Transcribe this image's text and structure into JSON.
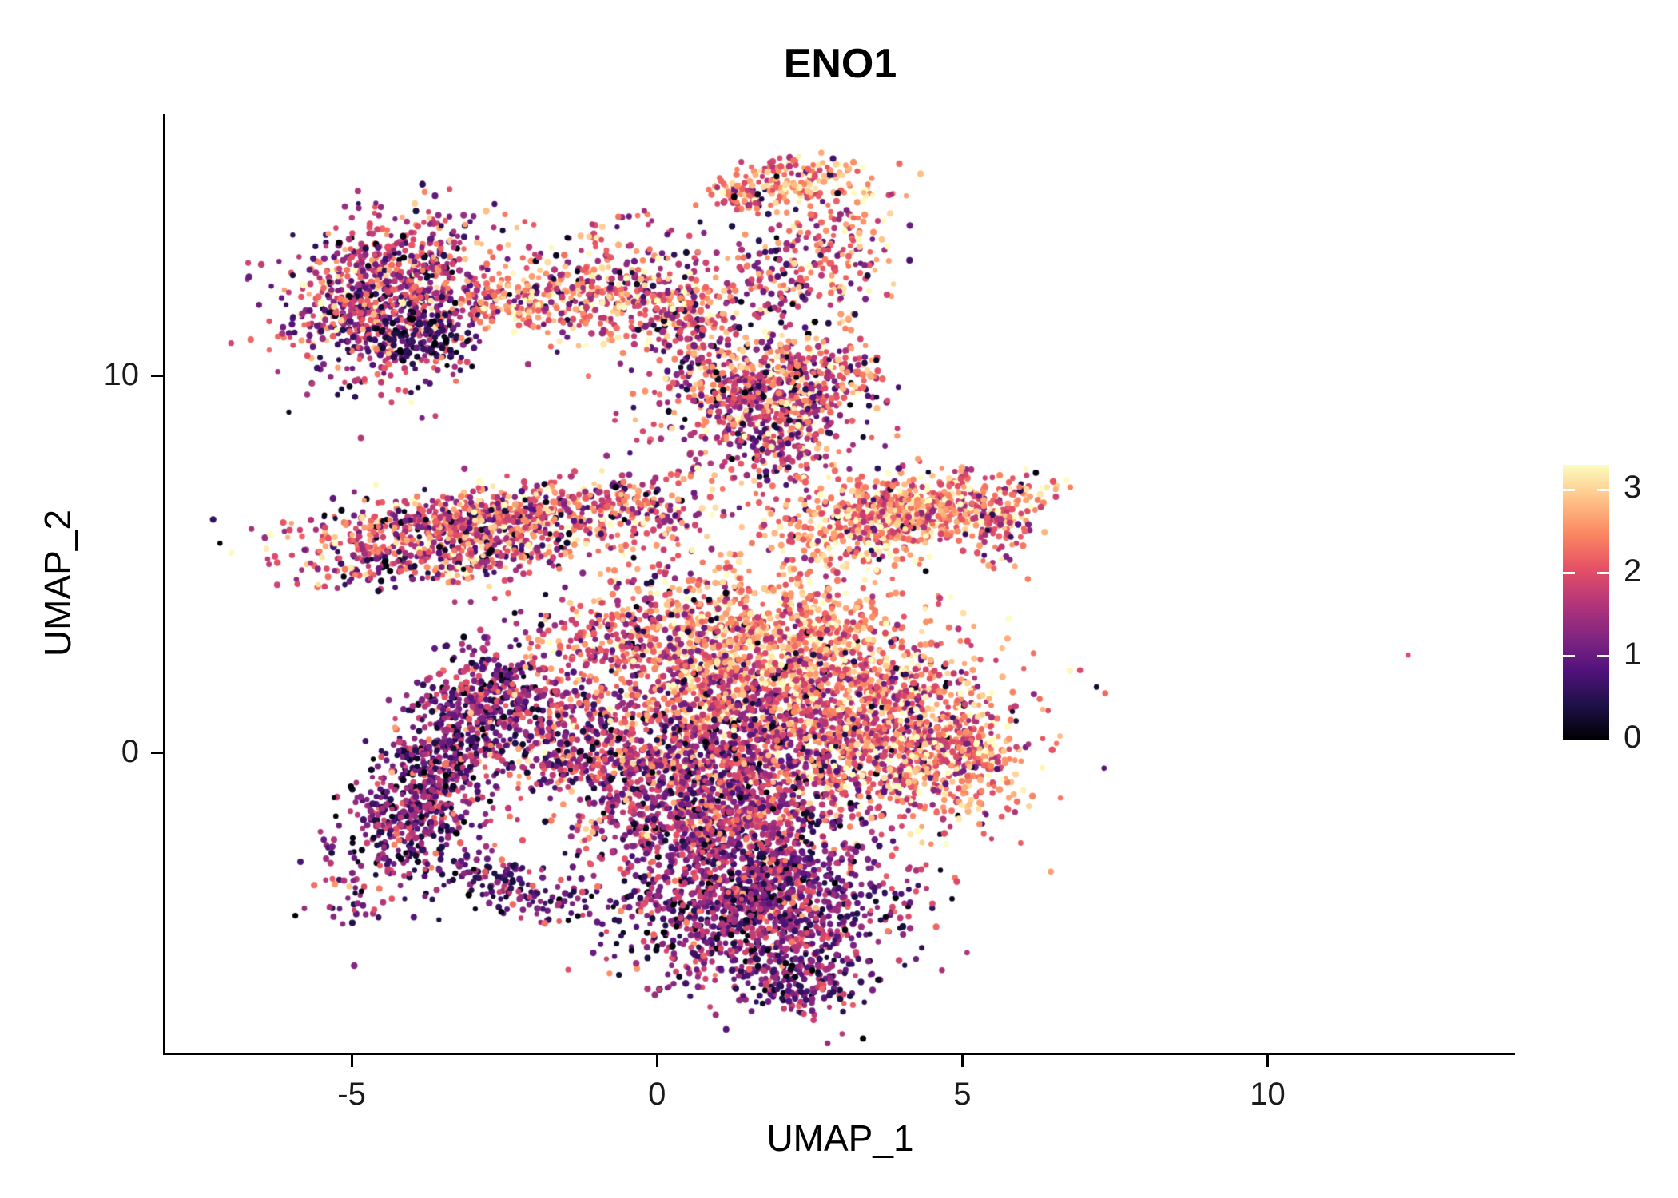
{
  "title": "ENO1",
  "chart_data": {
    "type": "scatter",
    "title": "ENO1",
    "subtitle": "",
    "xlabel": "UMAP_1",
    "ylabel": "UMAP_2",
    "xlim": [
      -8.05,
      14.05
    ],
    "ylim": [
      -7.95,
      16.95
    ],
    "grid": false,
    "x_ticks": [
      {
        "value": -5,
        "label": "-5"
      },
      {
        "value": 0,
        "label": "0"
      },
      {
        "value": 5,
        "label": "5"
      },
      {
        "value": 10,
        "label": "10"
      }
    ],
    "y_ticks": [
      {
        "value": 10,
        "label": "10"
      },
      {
        "value": 0,
        "label": "0"
      }
    ],
    "legend": {
      "position": "right",
      "range": [
        0,
        3.3
      ],
      "breaks": [
        {
          "value": 3,
          "label": "3"
        },
        {
          "value": 2,
          "label": "2"
        },
        {
          "value": 1,
          "label": "1"
        },
        {
          "value": 0,
          "label": "0"
        }
      ],
      "colormap": "magma",
      "stops": [
        "#000004",
        "#1d1147",
        "#51127c",
        "#822681",
        "#b63679",
        "#e65164",
        "#fb8861",
        "#fec287",
        "#fcfdbf"
      ]
    },
    "point_radius_px": [
      3.1,
      4.3
    ],
    "seed": 42,
    "clusters": [
      {
        "name": "top-left-main",
        "cx": -4.35,
        "cy": 12.1,
        "sx": 0.8,
        "sy": 1.05,
        "angle": -20,
        "n": 950,
        "expr_mean": 1.7,
        "expr_sd": 0.75,
        "low_frac": 0.07
      },
      {
        "name": "top-left-dark-patch",
        "cx": -3.85,
        "cy": 10.95,
        "sx": 0.38,
        "sy": 0.3,
        "angle": 0,
        "n": 100,
        "expr_mean": 0.5,
        "expr_sd": 0.35,
        "low_frac": 0.35
      },
      {
        "name": "top-left-bridge",
        "cx": -2.05,
        "cy": 12.0,
        "sx": 0.55,
        "sy": 0.4,
        "angle": 10,
        "n": 160,
        "expr_mean": 2.35,
        "expr_sd": 0.6,
        "low_frac": 0.05
      },
      {
        "name": "upper-mid-strip",
        "cx": -0.55,
        "cy": 12.3,
        "sx": 0.8,
        "sy": 0.78,
        "angle": -15,
        "n": 380,
        "expr_mean": 2.1,
        "expr_sd": 0.75,
        "low_frac": 0.06
      },
      {
        "name": "strip-south-tail",
        "cx": 0.55,
        "cy": 11.3,
        "sx": 0.45,
        "sy": 0.8,
        "angle": 15,
        "n": 170,
        "expr_mean": 1.9,
        "expr_sd": 0.7,
        "low_frac": 0.06
      },
      {
        "name": "top-blob",
        "cx": 2.3,
        "cy": 15.15,
        "sx": 0.6,
        "sy": 0.33,
        "angle": 5,
        "n": 170,
        "expr_mean": 2.6,
        "expr_sd": 0.55,
        "low_frac": 0.04
      },
      {
        "name": "top-blob-west",
        "cx": 1.35,
        "cy": 14.75,
        "sx": 0.3,
        "sy": 0.25,
        "angle": 0,
        "n": 60,
        "expr_mean": 2.2,
        "expr_sd": 0.6,
        "low_frac": 0.05
      },
      {
        "name": "top-right-column",
        "cx": 3.0,
        "cy": 13.6,
        "sx": 0.4,
        "sy": 0.85,
        "angle": 0,
        "n": 150,
        "expr_mean": 2.3,
        "expr_sd": 0.7,
        "low_frac": 0.05
      },
      {
        "name": "top-mid-trail",
        "cx": 2.0,
        "cy": 12.5,
        "sx": 0.5,
        "sy": 0.8,
        "angle": 0,
        "n": 130,
        "expr_mean": 1.8,
        "expr_sd": 0.7,
        "low_frac": 0.08
      },
      {
        "name": "mid-cluster",
        "cx": 1.6,
        "cy": 9.3,
        "sx": 0.8,
        "sy": 0.9,
        "angle": 0,
        "n": 620,
        "expr_mean": 1.9,
        "expr_sd": 0.75,
        "low_frac": 0.06
      },
      {
        "name": "mid-cluster-east",
        "cx": 2.65,
        "cy": 9.9,
        "sx": 0.5,
        "sy": 0.6,
        "angle": 0,
        "n": 200,
        "expr_mean": 2.1,
        "expr_sd": 0.7,
        "low_frac": 0.05
      },
      {
        "name": "mid-neck",
        "cx": 2.25,
        "cy": 7.8,
        "sx": 0.35,
        "sy": 0.7,
        "angle": 0,
        "n": 90,
        "expr_mean": 1.9,
        "expr_sd": 0.7,
        "low_frac": 0.05
      },
      {
        "name": "left-band-upper",
        "cx": -2.9,
        "cy": 6.15,
        "sx": 1.45,
        "sy": 0.4,
        "angle": 12,
        "n": 800,
        "expr_mean": 2.1,
        "expr_sd": 0.75,
        "low_frac": 0.06
      },
      {
        "name": "left-band-lower",
        "cx": -3.3,
        "cy": 5.15,
        "sx": 1.2,
        "sy": 0.3,
        "angle": 10,
        "n": 280,
        "expr_mean": 1.9,
        "expr_sd": 0.75,
        "low_frac": 0.08
      },
      {
        "name": "band-east-bridge",
        "cx": -0.2,
        "cy": 6.3,
        "sx": 0.7,
        "sy": 0.5,
        "angle": 15,
        "n": 140,
        "expr_mean": 2.0,
        "expr_sd": 0.7,
        "low_frac": 0.06
      },
      {
        "name": "right-band",
        "cx": 3.95,
        "cy": 6.3,
        "sx": 1.0,
        "sy": 0.5,
        "angle": 18,
        "n": 760,
        "expr_mean": 2.5,
        "expr_sd": 0.6,
        "low_frac": 0.04
      },
      {
        "name": "right-band-tip",
        "cx": 5.55,
        "cy": 6.4,
        "sx": 0.35,
        "sy": 0.55,
        "angle": 0,
        "n": 130,
        "expr_mean": 2.3,
        "expr_sd": 0.7,
        "low_frac": 0.05
      },
      {
        "name": "central-upper",
        "cx": 1.9,
        "cy": 3.0,
        "sx": 1.35,
        "sy": 1.0,
        "angle": 0,
        "n": 1050,
        "expr_mean": 2.55,
        "expr_sd": 0.55,
        "low_frac": 0.03
      },
      {
        "name": "central-mid",
        "cx": 1.6,
        "cy": 0.9,
        "sx": 1.6,
        "sy": 1.15,
        "angle": 0,
        "n": 1500,
        "expr_mean": 2.05,
        "expr_sd": 0.75,
        "low_frac": 0.05
      },
      {
        "name": "central-lower-left",
        "cx": 0.5,
        "cy": -0.7,
        "sx": 1.15,
        "sy": 0.95,
        "angle": 0,
        "n": 900,
        "expr_mean": 1.6,
        "expr_sd": 0.65,
        "low_frac": 0.08
      },
      {
        "name": "central-right-lobe",
        "cx": 3.9,
        "cy": 0.4,
        "sx": 0.95,
        "sy": 1.05,
        "angle": 0,
        "n": 650,
        "expr_mean": 2.25,
        "expr_sd": 0.65,
        "low_frac": 0.04
      },
      {
        "name": "right-lobe-tip",
        "cx": 5.0,
        "cy": -0.2,
        "sx": 0.55,
        "sy": 0.85,
        "angle": 0,
        "n": 260,
        "expr_mean": 2.35,
        "expr_sd": 0.6,
        "low_frac": 0.04
      },
      {
        "name": "central-upleft-spur",
        "cx": -0.4,
        "cy": 3.1,
        "sx": 0.7,
        "sy": 0.95,
        "angle": -30,
        "n": 260,
        "expr_mean": 1.9,
        "expr_sd": 0.7,
        "low_frac": 0.06
      },
      {
        "name": "left-arc",
        "cx": -3.6,
        "cy": -0.5,
        "sx": 0.5,
        "sy": 1.7,
        "angle": -20,
        "n": 950,
        "expr_mean": 1.25,
        "expr_sd": 0.6,
        "low_frac": 0.13
      },
      {
        "name": "left-arc-top",
        "cx": -2.7,
        "cy": 1.5,
        "sx": 0.55,
        "sy": 0.5,
        "angle": 0,
        "n": 180,
        "expr_mean": 1.5,
        "expr_sd": 0.65,
        "low_frac": 0.08
      },
      {
        "name": "arc-south-trail",
        "cx": -2.5,
        "cy": -3.5,
        "sx": 0.8,
        "sy": 0.35,
        "angle": -28,
        "n": 160,
        "expr_mean": 1.0,
        "expr_sd": 0.55,
        "low_frac": 0.18
      },
      {
        "name": "arc-center-bridge",
        "cx": -1.6,
        "cy": 0.3,
        "sx": 0.55,
        "sy": 0.75,
        "angle": 0,
        "n": 150,
        "expr_mean": 1.5,
        "expr_sd": 0.65,
        "low_frac": 0.08
      },
      {
        "name": "bottom-cluster",
        "cx": 1.55,
        "cy": -3.9,
        "sx": 1.15,
        "sy": 1.15,
        "angle": 0,
        "n": 1450,
        "expr_mean": 1.35,
        "expr_sd": 0.6,
        "low_frac": 0.1
      },
      {
        "name": "bottom-tip",
        "cx": 2.3,
        "cy": -6.1,
        "sx": 0.45,
        "sy": 0.4,
        "angle": 0,
        "n": 170,
        "expr_mean": 1.1,
        "expr_sd": 0.55,
        "low_frac": 0.12
      },
      {
        "name": "bottom-bridge",
        "cx": 1.2,
        "cy": -2.0,
        "sx": 1.0,
        "sy": 0.6,
        "angle": 0,
        "n": 300,
        "expr_mean": 1.6,
        "expr_sd": 0.65,
        "low_frac": 0.07
      }
    ],
    "outliers": [
      {
        "x": 12.3,
        "y": 2.6,
        "expr": 2.0
      }
    ]
  }
}
